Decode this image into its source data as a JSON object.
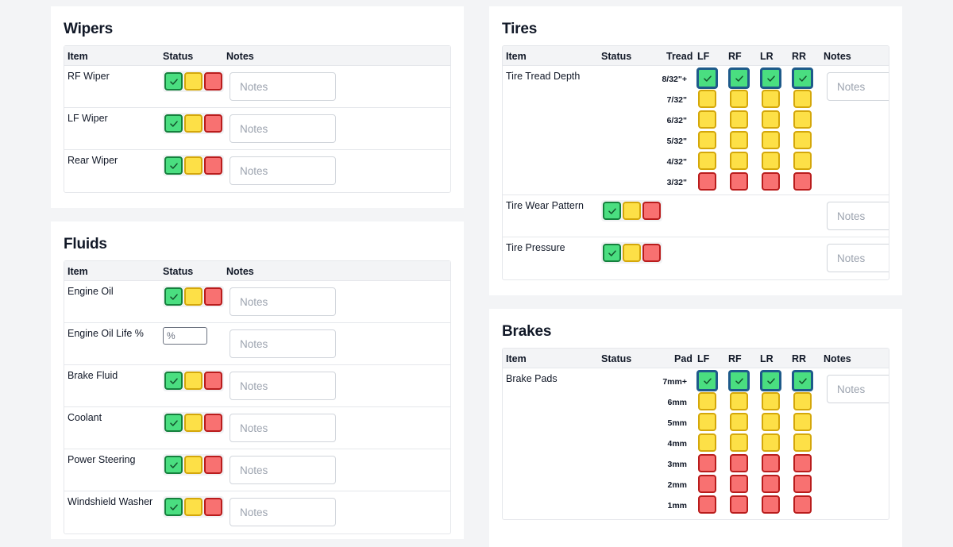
{
  "colors": {
    "green": "#4ade80",
    "yellow": "#fde047",
    "red": "#f87171",
    "selected_border": "#1e5a8a"
  },
  "icons": {
    "check": "check-icon"
  },
  "wipers": {
    "title": "Wipers",
    "headers": {
      "item": "Item",
      "status": "Status",
      "notes": "Notes"
    },
    "rows": [
      {
        "label": "RF Wiper",
        "selected": "green",
        "notes_placeholder": "Notes"
      },
      {
        "label": "LF Wiper",
        "selected": "green",
        "notes_placeholder": "Notes"
      },
      {
        "label": "Rear Wiper",
        "selected": "green",
        "notes_placeholder": "Notes"
      }
    ]
  },
  "fluids": {
    "title": "Fluids",
    "headers": {
      "item": "Item",
      "status": "Status",
      "notes": "Notes"
    },
    "rows": [
      {
        "label": "Engine Oil",
        "selected": "green",
        "notes_placeholder": "Notes"
      },
      {
        "label": "Engine Oil Life %",
        "input_placeholder": "%",
        "notes_placeholder": "Notes"
      },
      {
        "label": "Brake Fluid",
        "selected": "green",
        "notes_placeholder": "Notes"
      },
      {
        "label": "Coolant",
        "selected": "green",
        "notes_placeholder": "Notes"
      },
      {
        "label": "Power Steering",
        "selected": "green",
        "notes_placeholder": "Notes"
      },
      {
        "label": "Windshield Washer",
        "selected": "green",
        "notes_placeholder": "Notes"
      }
    ]
  },
  "tires": {
    "title": "Tires",
    "headers": {
      "item": "Item",
      "status": "Status",
      "tread": "Tread",
      "lf": "LF",
      "rf": "RF",
      "lr": "LR",
      "rr": "RR",
      "notes": "Notes"
    },
    "tread_row": {
      "label": "Tire Tread Depth",
      "levels": [
        "8/32\"+",
        "7/32\"",
        "6/32\"",
        "5/32\"",
        "4/32\"",
        "3/32\""
      ],
      "level_colors": [
        "green",
        "yellow",
        "yellow",
        "yellow",
        "yellow",
        "red"
      ],
      "selected": {
        "lf": "8/32\"+",
        "rf": "8/32\"+",
        "lr": "8/32\"+",
        "rr": "8/32\"+"
      },
      "notes_placeholder": "Notes"
    },
    "rows": [
      {
        "label": "Tire Wear Pattern",
        "selected": "green",
        "notes_placeholder": "Notes"
      },
      {
        "label": "Tire Pressure",
        "selected": "green",
        "notes_placeholder": "Notes"
      }
    ]
  },
  "brakes": {
    "title": "Brakes",
    "headers": {
      "item": "Item",
      "status": "Status",
      "pad": "Pad",
      "lf": "LF",
      "rf": "RF",
      "lr": "LR",
      "rr": "RR",
      "notes": "Notes"
    },
    "pad_row": {
      "label": "Brake Pads",
      "levels": [
        "7mm+",
        "6mm",
        "5mm",
        "4mm",
        "3mm",
        "2mm",
        "1mm"
      ],
      "level_colors": [
        "green",
        "yellow",
        "yellow",
        "yellow",
        "red",
        "red",
        "red"
      ],
      "selected": {
        "lf": "7mm+",
        "rf": "7mm+",
        "lr": "7mm+",
        "rr": "7mm+"
      },
      "notes_placeholder": "Notes"
    }
  }
}
